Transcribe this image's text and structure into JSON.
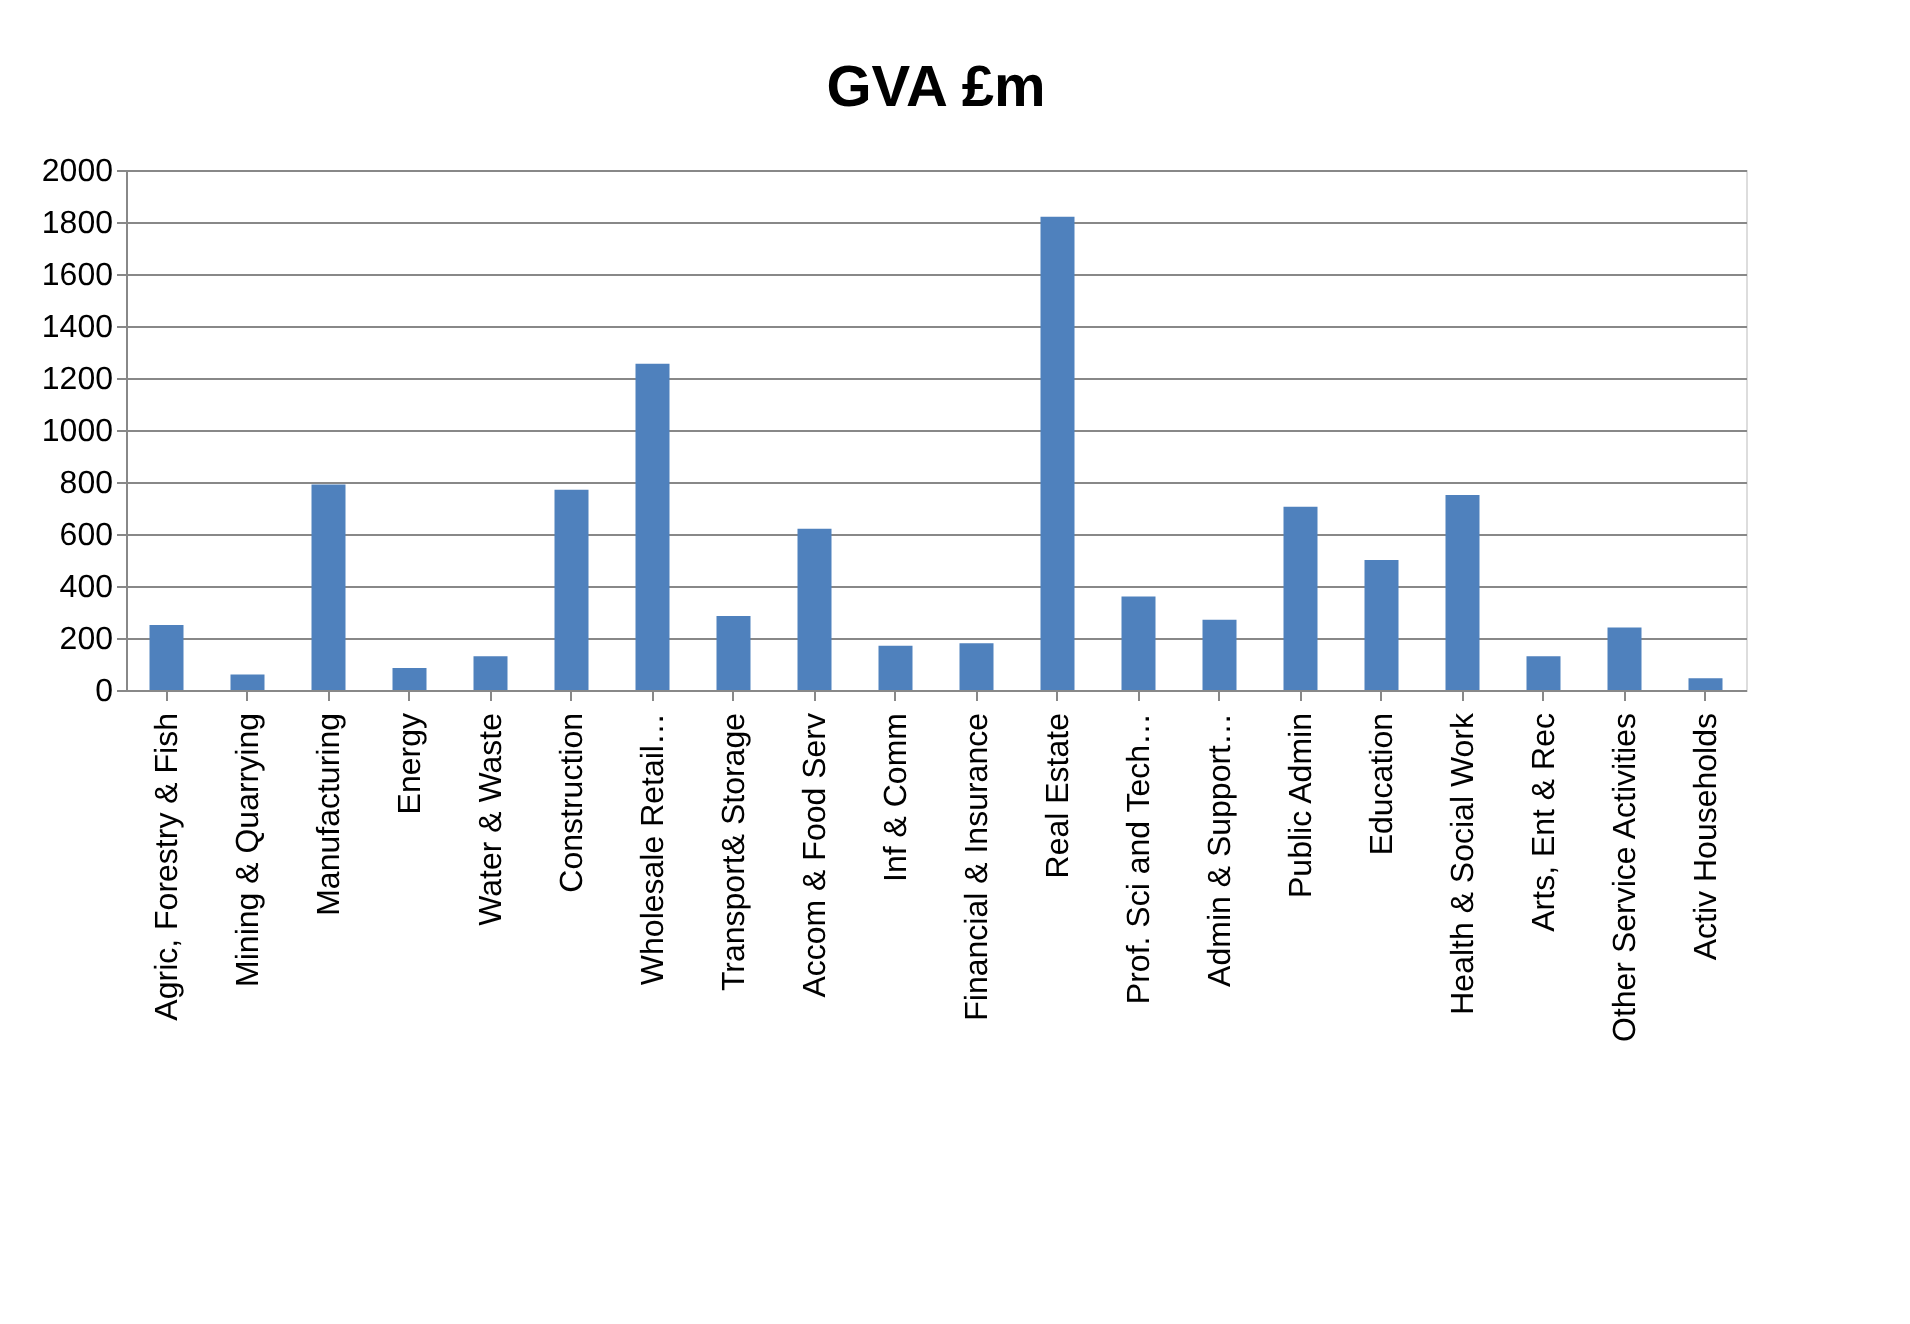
{
  "chart_data": {
    "type": "bar",
    "title": "GVA £m",
    "categories": [
      "Agric, Forestry & Fish",
      "Mining & Quarrying",
      "Manufacturing",
      "Energy",
      "Water & Waste",
      "Construction",
      "Wholesale Retail…",
      "Transport& Storage",
      "Accom & Food Serv",
      "Inf & Comm",
      "Financial & Insurance",
      "Real Estate",
      "Prof. Sci and Tech…",
      "Admin & Support…",
      "Public Admin",
      "Education",
      "Health & Social Work",
      "Arts, Ent & Rec",
      "Other Service Activities",
      "Activ Households"
    ],
    "values": [
      250,
      60,
      790,
      85,
      130,
      770,
      1255,
      285,
      620,
      170,
      180,
      1820,
      360,
      270,
      705,
      500,
      750,
      130,
      240,
      45
    ],
    "color": "#4f81bd",
    "ylim": [
      0,
      2000
    ],
    "yticks": [
      0,
      200,
      400,
      600,
      800,
      1000,
      1200,
      1400,
      1600,
      1800,
      2000
    ],
    "grid": "y"
  }
}
